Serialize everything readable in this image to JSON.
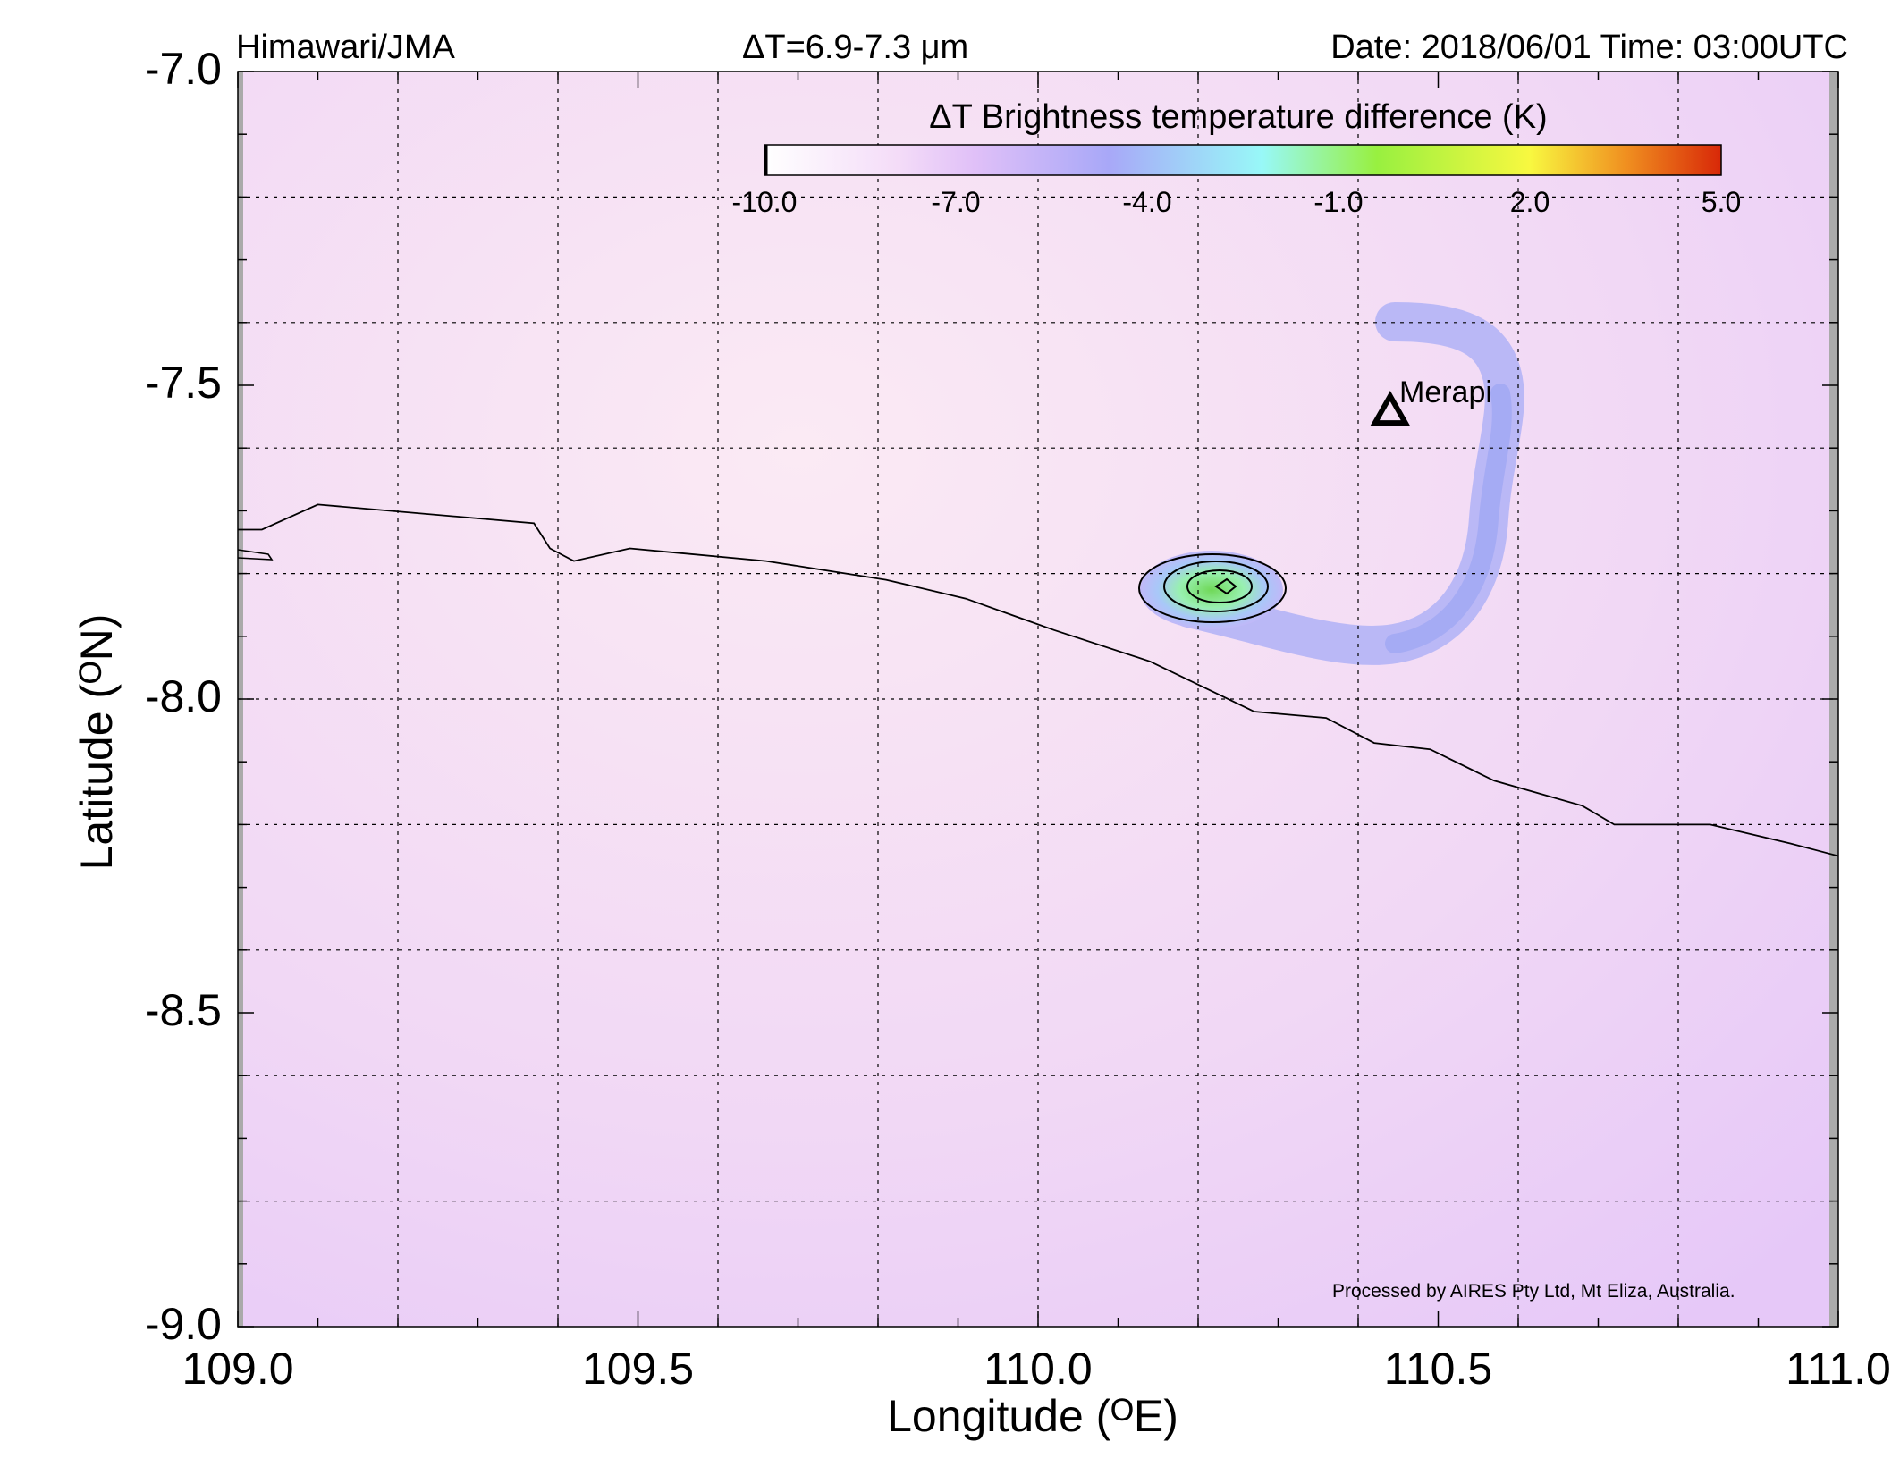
{
  "header": {
    "source": "Himawari/JMA",
    "band": "ΔT=6.9-7.3 μm",
    "datetime": "Date: 2018/06/01 Time: 03:00UTC"
  },
  "axes": {
    "x_title": "Longitude (ᴼE)",
    "y_title": "Latitude (ᴼN)",
    "x_ticks": [
      "109.0",
      "109.5",
      "110.0",
      "110.5",
      "111.0"
    ],
    "y_ticks": [
      "-7.0",
      "-7.5",
      "-8.0",
      "-8.5",
      "-9.0"
    ]
  },
  "colorbar": {
    "title": "ΔT Brightness temperature difference (K)",
    "ticks": [
      "-10.0",
      "-7.0",
      "-4.0",
      "-1.0",
      "2.0",
      "5.0"
    ],
    "range": [
      -10.0,
      5.0
    ],
    "colors": [
      "#ffffff",
      "#f0ccf8",
      "#a8a8f8",
      "#98f8f8",
      "#98f040",
      "#f8f840",
      "#d82808"
    ]
  },
  "map": {
    "xlim": [
      109.0,
      111.0
    ],
    "ylim": [
      -9.0,
      -7.0
    ],
    "background_color": "#f4dcf4",
    "plume_color": "#b0b0f8",
    "volcano": {
      "name": "Merapi",
      "lon": 110.44,
      "lat": -7.54,
      "marker": "triangle-icon"
    },
    "coastline": [
      [
        109.0,
        -7.73
      ],
      [
        109.03,
        -7.73
      ],
      [
        109.1,
        -7.69
      ],
      [
        109.37,
        -7.72
      ],
      [
        109.39,
        -7.76
      ],
      [
        109.42,
        -7.78
      ],
      [
        109.49,
        -7.76
      ],
      [
        109.66,
        -7.78
      ],
      [
        109.81,
        -7.81
      ],
      [
        109.91,
        -7.84
      ],
      [
        110.02,
        -7.89
      ],
      [
        110.14,
        -7.94
      ],
      [
        110.27,
        -8.02
      ],
      [
        110.36,
        -8.03
      ],
      [
        110.42,
        -8.07
      ],
      [
        110.49,
        -8.08
      ],
      [
        110.57,
        -8.13
      ],
      [
        110.68,
        -8.17
      ],
      [
        110.72,
        -8.2
      ],
      [
        110.84,
        -8.2
      ],
      [
        110.94,
        -8.23
      ],
      [
        111.0,
        -8.25
      ]
    ]
  },
  "credit": "Processed by AIRES Pty Ltd, Mt Eliza, Australia."
}
